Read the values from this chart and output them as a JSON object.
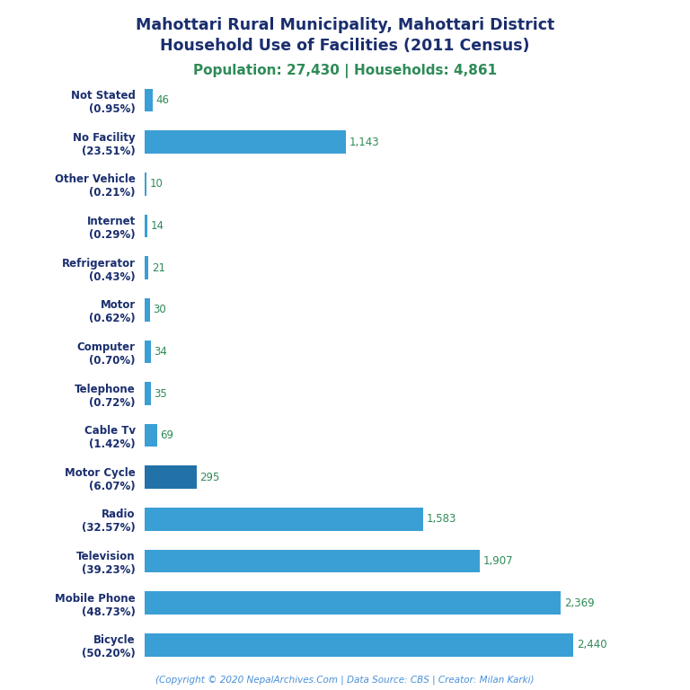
{
  "title_line1": "Mahottari Rural Municipality, Mahottari District",
  "title_line2": "Household Use of Facilities (2011 Census)",
  "subtitle": "Population: 27,430 | Households: 4,861",
  "footer": "(Copyright © 2020 NepalArchives.Com | Data Source: CBS | Creator: Milan Karki)",
  "categories": [
    "Not Stated\n(0.95%)",
    "No Facility\n(23.51%)",
    "Other Vehicle\n(0.21%)",
    "Internet\n(0.29%)",
    "Refrigerator\n(0.43%)",
    "Motor\n(0.62%)",
    "Computer\n(0.70%)",
    "Telephone\n(0.72%)",
    "Cable Tv\n(1.42%)",
    "Motor Cycle\n(6.07%)",
    "Radio\n(32.57%)",
    "Television\n(39.23%)",
    "Mobile Phone\n(48.73%)",
    "Bicycle\n(50.20%)"
  ],
  "values": [
    46,
    1143,
    10,
    14,
    21,
    30,
    34,
    35,
    69,
    295,
    1583,
    1907,
    2369,
    2440
  ],
  "bar_colors": [
    "#3a9fd4",
    "#3a9fd4",
    "#3a9fd4",
    "#3a9fd4",
    "#3a9fd4",
    "#3a9fd4",
    "#3a9fd4",
    "#3a9fd4",
    "#3a9fd4",
    "#2272a8",
    "#3a9fd4",
    "#3a9fd4",
    "#3a9fd4",
    "#3a9fd4"
  ],
  "title_color": "#1a2e6e",
  "subtitle_color": "#2e8b57",
  "value_color": "#2e8b57",
  "label_color": "#1a2e6e",
  "footer_color": "#4a90d9",
  "bg_color": "#ffffff",
  "xlim": [
    0,
    2750
  ]
}
